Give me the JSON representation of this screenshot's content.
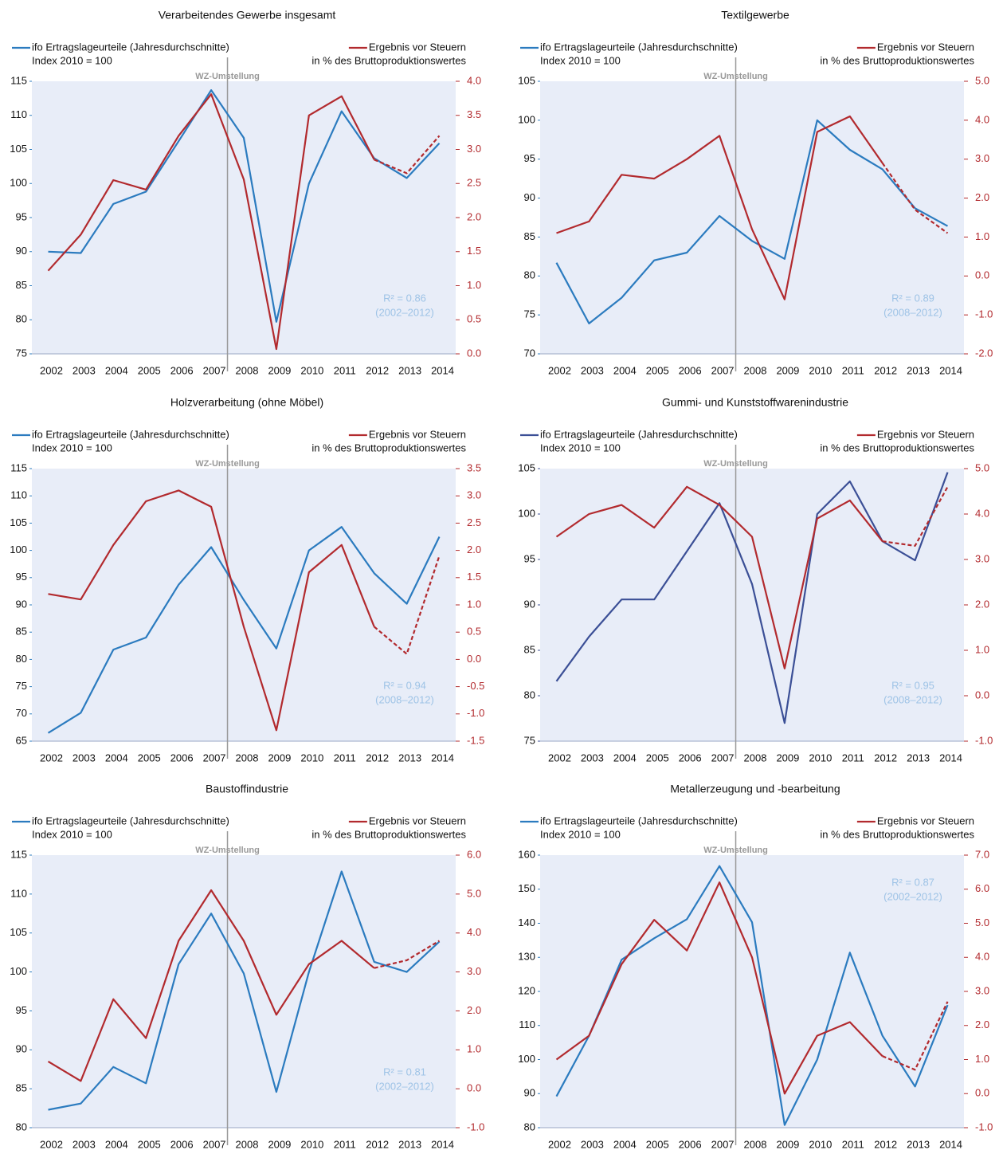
{
  "chart_data": [
    {
      "type": "line",
      "title": "Verarbeitendes Gewerbe insgesamt",
      "annotation": "WZ-Umstellung",
      "r2": "R² = 0.86",
      "r2_period": "(2002–2012)",
      "r2_corner": "bottom-right",
      "categories": [
        "2002",
        "2003",
        "2004",
        "2005",
        "2006",
        "2007",
        "2008",
        "2009",
        "2010",
        "2011",
        "2012",
        "2013",
        "2014"
      ],
      "ylim": [
        75,
        115
      ],
      "yticks": [
        75,
        80,
        85,
        90,
        95,
        100,
        105,
        110,
        115
      ],
      "y2lim": [
        0,
        4
      ],
      "y2ticks": [
        {
          "value": 0,
          "label": "0.0"
        },
        {
          "value": 0.5,
          "label": "0.5"
        },
        {
          "value": 1,
          "label": "1.0"
        },
        {
          "value": 1.5,
          "label": "1.5"
        },
        {
          "value": 2,
          "label": "2.0"
        },
        {
          "value": 2.5,
          "label": "2.5"
        },
        {
          "value": 3,
          "label": "3.0"
        },
        {
          "value": 3.5,
          "label": "3.5"
        },
        {
          "value": 4,
          "label": "4.0"
        }
      ],
      "series": [
        {
          "name": "ifo Ertragslageurteile (Jahresdurchschnitte)",
          "unit": "Index 2010 = 100",
          "color": "#2b7bbf",
          "values": [
            90,
            89.8,
            97,
            98.8,
            106.2,
            113.7,
            106.7,
            79.7,
            100,
            110.6,
            103.7,
            100.8,
            105.9
          ]
        },
        {
          "name": "Ergebnis vor Steuern",
          "unit": "in % des Bruttoproduktionswertes",
          "color": "#b22a2e",
          "axis": "y2",
          "dashed_from": "2012",
          "values": [
            1.22,
            1.75,
            2.55,
            2.41,
            3.2,
            3.81,
            2.56,
            0.07,
            3.5,
            3.78,
            2.85,
            2.65,
            3.2
          ]
        }
      ]
    },
    {
      "type": "line",
      "title": "Textilgewerbe",
      "annotation": "WZ-Umstellung",
      "r2": "R² = 0.89",
      "r2_period": "(2008–2012)",
      "r2_corner": "bottom-right",
      "categories": [
        "2002",
        "2003",
        "2004",
        "2005",
        "2006",
        "2007",
        "2008",
        "2009",
        "2010",
        "2011",
        "2012",
        "2013",
        "2014"
      ],
      "ylim": [
        70,
        105
      ],
      "yticks": [
        70,
        75,
        80,
        85,
        90,
        95,
        100,
        105
      ],
      "y2lim": [
        -2,
        5
      ],
      "y2ticks": [
        {
          "value": -2,
          "label": "-2.0"
        },
        {
          "value": -1,
          "label": "-1.0"
        },
        {
          "value": 0,
          "label": "0.0"
        },
        {
          "value": 1,
          "label": "1.0"
        },
        {
          "value": 2,
          "label": "2.0"
        },
        {
          "value": 3,
          "label": "3.0"
        },
        {
          "value": 4,
          "label": "4.0"
        },
        {
          "value": 5,
          "label": "5.0"
        }
      ],
      "series": [
        {
          "name": "ifo Ertragslageurteile (Jahresdurchschnitte)",
          "unit": "Index 2010 = 100",
          "color": "#2b7bbf",
          "values": [
            81.7,
            73.9,
            77.2,
            82,
            83,
            87.7,
            84.5,
            82.2,
            100,
            96.2,
            93.7,
            88.7,
            86.4
          ]
        },
        {
          "name": "Ergebnis vor Steuern",
          "unit": "in % des Bruttoproduktionswertes",
          "color": "#b22a2e",
          "axis": "y2",
          "dashed_from": "2012",
          "values": [
            1.1,
            1.4,
            2.6,
            2.5,
            3,
            3.6,
            1.2,
            -0.6,
            3.7,
            4.1,
            2.9,
            1.7,
            1.1
          ]
        }
      ]
    },
    {
      "type": "line",
      "title": "Holzverarbeitung (ohne Möbel)",
      "annotation": "WZ-Umstellung",
      "r2": "R² = 0.94",
      "r2_period": "(2008–2012)",
      "r2_corner": "bottom-right",
      "categories": [
        "2002",
        "2003",
        "2004",
        "2005",
        "2006",
        "2007",
        "2008",
        "2009",
        "2010",
        "2011",
        "2012",
        "2013",
        "2014"
      ],
      "ylim": [
        65,
        115
      ],
      "yticks": [
        65,
        70,
        75,
        80,
        85,
        90,
        95,
        100,
        105,
        110,
        115
      ],
      "y2lim": [
        -1.5,
        3.5
      ],
      "y2ticks": [
        {
          "value": -1.5,
          "label": "-1.5"
        },
        {
          "value": -1,
          "label": "-1.0"
        },
        {
          "value": -0.5,
          "label": "-0.5"
        },
        {
          "value": 0,
          "label": "0.0"
        },
        {
          "value": 0.5,
          "label": "0.5"
        },
        {
          "value": 1,
          "label": "1.0"
        },
        {
          "value": 1.5,
          "label": "1.5"
        },
        {
          "value": 2,
          "label": "2.0"
        },
        {
          "value": 2.5,
          "label": "2.5"
        },
        {
          "value": 3,
          "label": "3.0"
        },
        {
          "value": 3.5,
          "label": "3.5"
        }
      ],
      "series": [
        {
          "name": "ifo Ertragslageurteile (Jahresdurchschnitte)",
          "unit": "Index 2010 = 100",
          "color": "#2b7bbf",
          "values": [
            66.5,
            70.2,
            81.8,
            84,
            93.7,
            100.6,
            90.9,
            82,
            100,
            104.3,
            95.8,
            90.2,
            102.5
          ]
        },
        {
          "name": "Ergebnis vor Steuern",
          "unit": "in % des Bruttoproduktionswertes",
          "color": "#b22a2e",
          "axis": "y2",
          "dashed_from": "2012",
          "values": [
            1.2,
            1.1,
            2.1,
            2.9,
            3.1,
            2.8,
            0.6,
            -1.3,
            1.6,
            2.1,
            0.6,
            0.1,
            1.9
          ]
        }
      ]
    },
    {
      "type": "line",
      "title": "Gummi- und Kunststoffwarenindustrie",
      "annotation": "WZ-Umstellung",
      "r2": "R² = 0.95",
      "r2_period": "(2008–2012)",
      "r2_corner": "bottom-right",
      "categories": [
        "2002",
        "2003",
        "2004",
        "2005",
        "2006",
        "2007",
        "2008",
        "2009",
        "2010",
        "2011",
        "2012",
        "2013",
        "2014"
      ],
      "ylim": [
        75,
        105
      ],
      "yticks": [
        75,
        80,
        85,
        90,
        95,
        100,
        105
      ],
      "y2lim": [
        -1,
        5
      ],
      "y2ticks": [
        {
          "value": -1,
          "label": "-1.0"
        },
        {
          "value": 0,
          "label": "0.0"
        },
        {
          "value": 1,
          "label": "1.0"
        },
        {
          "value": 2,
          "label": "2.0"
        },
        {
          "value": 3,
          "label": "3.0"
        },
        {
          "value": 4,
          "label": "4.0"
        },
        {
          "value": 5,
          "label": "5.0"
        }
      ],
      "series": [
        {
          "name": "ifo Ertragslageurteile (Jahresdurchschnitte)",
          "unit": "Index 2010 = 100",
          "color": "#3b4f96",
          "values": [
            81.6,
            86.5,
            90.6,
            90.6,
            95.9,
            101.2,
            92.3,
            77,
            100,
            103.6,
            97,
            94.9,
            104.6
          ]
        },
        {
          "name": "Ergebnis vor Steuern",
          "unit": "in % des Bruttoproduktionswertes",
          "color": "#b22a2e",
          "axis": "y2",
          "dashed_from": "2012",
          "values": [
            3.5,
            4,
            4.2,
            3.7,
            4.6,
            4.2,
            3.5,
            0.6,
            3.9,
            4.3,
            3.4,
            3.3,
            4.6
          ]
        }
      ]
    },
    {
      "type": "line",
      "title": "Baustoffindustrie",
      "annotation": "WZ-Umstellung",
      "r2": "R² = 0.81",
      "r2_period": "(2002–2012)",
      "r2_corner": "bottom-right",
      "categories": [
        "2002",
        "2003",
        "2004",
        "2005",
        "2006",
        "2007",
        "2008",
        "2009",
        "2010",
        "2011",
        "2012",
        "2013",
        "2014"
      ],
      "ylim": [
        80,
        115
      ],
      "yticks": [
        80,
        85,
        90,
        95,
        100,
        105,
        110,
        115
      ],
      "y2lim": [
        -1,
        6
      ],
      "y2ticks": [
        {
          "value": -1,
          "label": "-1.0"
        },
        {
          "value": 0,
          "label": "0.0"
        },
        {
          "value": 1,
          "label": "1.0"
        },
        {
          "value": 2,
          "label": "2.0"
        },
        {
          "value": 3,
          "label": "3.0"
        },
        {
          "value": 4,
          "label": "4.0"
        },
        {
          "value": 5,
          "label": "5.0"
        },
        {
          "value": 6,
          "label": "6.0"
        }
      ],
      "series": [
        {
          "name": "ifo Ertragslageurteile (Jahresdurchschnitte)",
          "unit": "Index 2010 = 100",
          "color": "#2b7bbf",
          "values": [
            82.3,
            83.1,
            87.8,
            85.7,
            101,
            107.5,
            99.8,
            84.6,
            100,
            112.9,
            101.3,
            100,
            103.9
          ]
        },
        {
          "name": "Ergebnis vor Steuern",
          "unit": "in % des Bruttoproduktionswertes",
          "color": "#b22a2e",
          "axis": "y2",
          "dashed_from": "2012",
          "values": [
            0.7,
            0.2,
            2.3,
            1.3,
            3.8,
            5.1,
            3.8,
            1.9,
            3.2,
            3.8,
            3.1,
            3.3,
            3.8
          ]
        }
      ]
    },
    {
      "type": "line",
      "title": "Metallerzeugung und -bearbeitung",
      "annotation": "WZ-Umstellung",
      "r2": "R² = 0.87",
      "r2_period": "(2002–2012)",
      "r2_corner": "top-right",
      "categories": [
        "2002",
        "2003",
        "2004",
        "2005",
        "2006",
        "2007",
        "2008",
        "2009",
        "2010",
        "2011",
        "2012",
        "2013",
        "2014"
      ],
      "ylim": [
        80,
        160
      ],
      "yticks": [
        80,
        90,
        100,
        110,
        120,
        130,
        140,
        150,
        160
      ],
      "y2lim": [
        -1,
        7
      ],
      "y2ticks": [
        {
          "value": -1,
          "label": "-1.0"
        },
        {
          "value": 0,
          "label": "0.0"
        },
        {
          "value": 1,
          "label": "1.0"
        },
        {
          "value": 2,
          "label": "2.0"
        },
        {
          "value": 3,
          "label": "3.0"
        },
        {
          "value": 4,
          "label": "4.0"
        },
        {
          "value": 5,
          "label": "5.0"
        },
        {
          "value": 6,
          "label": "6.0"
        },
        {
          "value": 7,
          "label": "7.0"
        }
      ],
      "series": [
        {
          "name": "ifo Ertragslageurteile (Jahresdurchschnitte)",
          "unit": "Index 2010 = 100",
          "color": "#2b7bbf",
          "values": [
            89.2,
            107,
            129.3,
            135.6,
            141.2,
            156.8,
            140.3,
            80.8,
            100,
            131.4,
            107,
            92.1,
            116
          ]
        },
        {
          "name": "Ergebnis vor Steuern",
          "unit": "in % des Bruttoproduktionswertes",
          "color": "#b22a2e",
          "axis": "y2",
          "dashed_from": "2012",
          "values": [
            1,
            1.7,
            3.8,
            5.1,
            4.2,
            6.2,
            4,
            0,
            1.7,
            2.1,
            1.1,
            0.7,
            2.7
          ]
        }
      ]
    }
  ]
}
